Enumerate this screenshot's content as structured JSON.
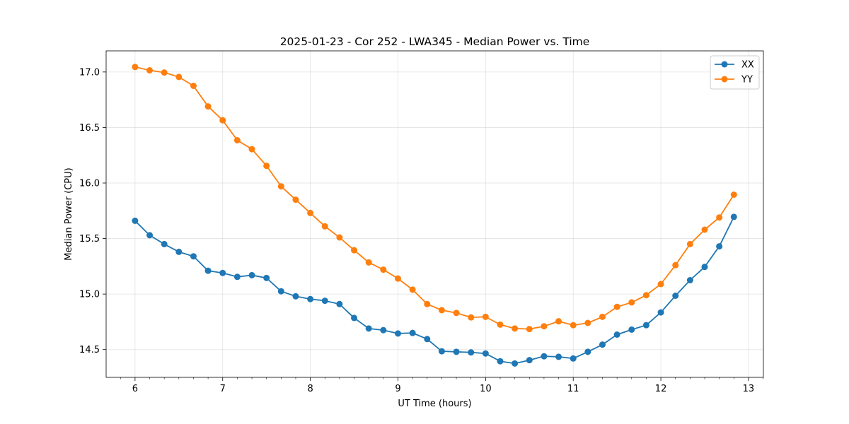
{
  "chart_data": {
    "type": "line",
    "title": "2025-01-23 - Cor 252 - LWA345 - Median Power vs. Time",
    "xlabel": "UT Time (hours)",
    "ylabel": "Median Power (CPU)",
    "xlim": [
      5.67,
      13.17
    ],
    "ylim": [
      14.25,
      17.19
    ],
    "xticks": [
      6,
      7,
      8,
      9,
      10,
      11,
      12,
      13
    ],
    "yticks": [
      14.5,
      15.0,
      15.5,
      16.0,
      16.5,
      17.0
    ],
    "xtick_labels": [
      "6",
      "7",
      "8",
      "9",
      "10",
      "11",
      "12",
      "13"
    ],
    "ytick_labels": [
      "14.5",
      "15.0",
      "15.5",
      "16.0",
      "16.5",
      "17.0"
    ],
    "grid": true,
    "legend_position": "top-right",
    "x": [
      6.0,
      6.1667,
      6.3333,
      6.5,
      6.6667,
      6.8333,
      7.0,
      7.1667,
      7.3333,
      7.5,
      7.6667,
      7.8333,
      8.0,
      8.1667,
      8.3333,
      8.5,
      8.6667,
      8.8333,
      9.0,
      9.1667,
      9.3333,
      9.5,
      9.6667,
      9.8333,
      10.0,
      10.1667,
      10.3333,
      10.5,
      10.6667,
      10.8333,
      11.0,
      11.1667,
      11.3333,
      11.5,
      11.6667,
      11.8333,
      12.0,
      12.1667,
      12.3333,
      12.5,
      12.6667,
      12.8333
    ],
    "series": [
      {
        "name": "XX",
        "color": "#1f77b4",
        "values": [
          15.66,
          15.53,
          15.45,
          15.38,
          15.34,
          15.21,
          15.19,
          15.155,
          15.17,
          15.145,
          15.025,
          14.98,
          14.955,
          14.94,
          14.91,
          14.785,
          14.69,
          14.675,
          14.645,
          14.65,
          14.595,
          14.485,
          14.48,
          14.475,
          14.465,
          14.395,
          14.375,
          14.405,
          14.44,
          14.435,
          14.42,
          14.48,
          14.545,
          14.635,
          14.68,
          14.72,
          14.835,
          14.985,
          15.125,
          15.245,
          15.43,
          15.695
        ]
      },
      {
        "name": "YY",
        "color": "#ff7f0e",
        "values": [
          17.045,
          17.015,
          16.995,
          16.955,
          16.875,
          16.69,
          16.565,
          16.385,
          16.305,
          16.155,
          15.97,
          15.85,
          15.73,
          15.61,
          15.51,
          15.395,
          15.285,
          15.22,
          15.14,
          15.04,
          14.91,
          14.855,
          14.83,
          14.79,
          14.795,
          14.725,
          14.69,
          14.685,
          14.71,
          14.755,
          14.72,
          14.74,
          14.795,
          14.885,
          14.925,
          14.99,
          15.09,
          15.26,
          15.45,
          15.58,
          15.69,
          15.895
        ]
      }
    ]
  }
}
